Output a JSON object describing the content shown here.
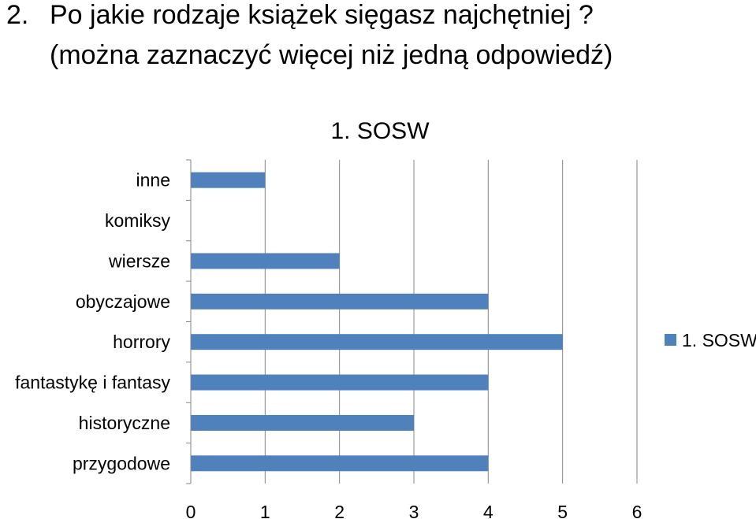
{
  "question": {
    "number": "2.",
    "text": "Po jakie rodzaje książek sięgasz najchętniej ?",
    "note": "(można zaznaczyć więcej niż jedną odpowiedź)"
  },
  "colors": {
    "bar": "#4f81bd",
    "grid": "#868686",
    "axis": "#868686"
  },
  "chart_data": {
    "type": "bar",
    "orientation": "horizontal",
    "title": "1. SOSW",
    "categories": [
      "inne",
      "komiksy",
      "wiersze",
      "obyczajowe",
      "horrory",
      "fantastykę i fantasy",
      "historyczne",
      "przygodowe"
    ],
    "series": [
      {
        "name": "1. SOSW",
        "values": [
          1,
          0,
          2,
          4,
          5,
          4,
          3,
          4
        ]
      }
    ],
    "xlim": [
      0,
      6
    ],
    "xticks": [
      "0",
      "1",
      "2",
      "3",
      "4",
      "5",
      "6"
    ],
    "grid": "vertical",
    "legend": "right"
  }
}
